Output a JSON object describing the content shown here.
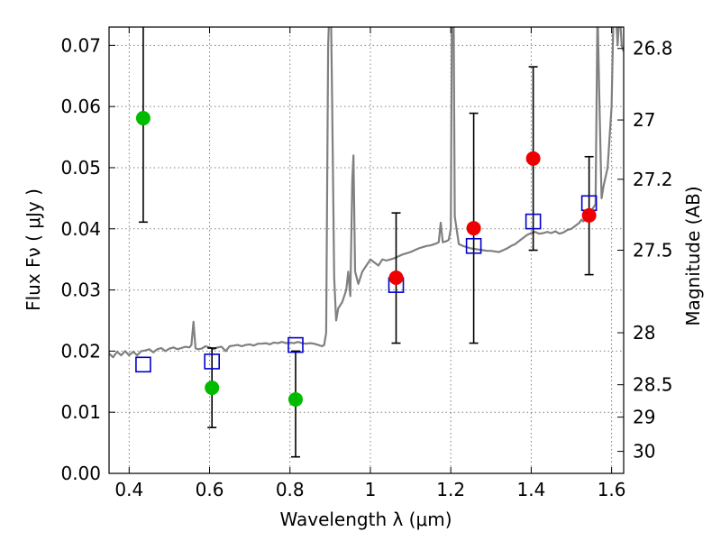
{
  "chart_data": {
    "type": "scatter",
    "title": "",
    "xlabel": "Wavelength  λ (μm)",
    "ylabel": "Flux  Fν  ( μJy )",
    "y2label": "Magnitude (AB)",
    "xlim": [
      0.35,
      1.63
    ],
    "ylim": [
      0.0,
      0.073
    ],
    "grid": true,
    "legend": "none",
    "x_ticks": [
      {
        "value": 0.4,
        "label": "0.4"
      },
      {
        "value": 0.6,
        "label": "0.6"
      },
      {
        "value": 0.8,
        "label": "0.8"
      },
      {
        "value": 1.0,
        "label": "1"
      },
      {
        "value": 1.2,
        "label": "1.2"
      },
      {
        "value": 1.4,
        "label": "1.4"
      },
      {
        "value": 1.6,
        "label": "1.6"
      }
    ],
    "y_ticks": [
      {
        "value": 0.0,
        "label": "0.00"
      },
      {
        "value": 0.01,
        "label": "0.01"
      },
      {
        "value": 0.02,
        "label": "0.02"
      },
      {
        "value": 0.03,
        "label": "0.03"
      },
      {
        "value": 0.04,
        "label": "0.04"
      },
      {
        "value": 0.05,
        "label": "0.05"
      },
      {
        "value": 0.06,
        "label": "0.06"
      },
      {
        "value": 0.07,
        "label": "0.07"
      }
    ],
    "y2_ticks": [
      {
        "label": "26.8",
        "flux": 0.0695
      },
      {
        "label": "27",
        "flux": 0.0578
      },
      {
        "label": "27.2",
        "flux": 0.0481
      },
      {
        "label": "27.5",
        "flux": 0.0365
      },
      {
        "label": "28",
        "flux": 0.023
      },
      {
        "label": "28.5",
        "flux": 0.0145
      },
      {
        "label": "29",
        "flux": 0.0092
      },
      {
        "label": "30",
        "flux": 0.0036
      }
    ],
    "colors": {
      "model": "#808080",
      "synthetic": "#0000cc",
      "upper": "#00bb00",
      "detected": "#ee0000",
      "errorbar": "#000000"
    },
    "model_spectrum": [
      [
        0.35,
        0.0196
      ],
      [
        0.36,
        0.019
      ],
      [
        0.37,
        0.0199
      ],
      [
        0.38,
        0.0193
      ],
      [
        0.39,
        0.02
      ],
      [
        0.4,
        0.0193
      ],
      [
        0.41,
        0.0199
      ],
      [
        0.42,
        0.0193
      ],
      [
        0.43,
        0.02
      ],
      [
        0.44,
        0.0201
      ],
      [
        0.45,
        0.0203
      ],
      [
        0.46,
        0.0198
      ],
      [
        0.47,
        0.0203
      ],
      [
        0.48,
        0.0205
      ],
      [
        0.49,
        0.02
      ],
      [
        0.5,
        0.0204
      ],
      [
        0.51,
        0.0206
      ],
      [
        0.52,
        0.0203
      ],
      [
        0.53,
        0.0205
      ],
      [
        0.54,
        0.0207
      ],
      [
        0.55,
        0.0206
      ],
      [
        0.555,
        0.021
      ],
      [
        0.56,
        0.0248
      ],
      [
        0.565,
        0.0205
      ],
      [
        0.57,
        0.0203
      ],
      [
        0.58,
        0.0204
      ],
      [
        0.59,
        0.0208
      ],
      [
        0.6,
        0.0206
      ],
      [
        0.61,
        0.0203
      ],
      [
        0.62,
        0.0206
      ],
      [
        0.63,
        0.0207
      ],
      [
        0.64,
        0.02
      ],
      [
        0.65,
        0.0208
      ],
      [
        0.66,
        0.0209
      ],
      [
        0.67,
        0.021
      ],
      [
        0.68,
        0.0208
      ],
      [
        0.69,
        0.021
      ],
      [
        0.7,
        0.0211
      ],
      [
        0.71,
        0.0209
      ],
      [
        0.72,
        0.0212
      ],
      [
        0.73,
        0.0212
      ],
      [
        0.74,
        0.0213
      ],
      [
        0.75,
        0.0211
      ],
      [
        0.76,
        0.0214
      ],
      [
        0.77,
        0.0213
      ],
      [
        0.78,
        0.0215
      ],
      [
        0.79,
        0.0213
      ],
      [
        0.8,
        0.0214
      ],
      [
        0.81,
        0.0213
      ],
      [
        0.82,
        0.0215
      ],
      [
        0.83,
        0.0213
      ],
      [
        0.84,
        0.0212
      ],
      [
        0.85,
        0.0213
      ],
      [
        0.86,
        0.0212
      ],
      [
        0.87,
        0.021
      ],
      [
        0.88,
        0.0208
      ],
      [
        0.885,
        0.021
      ],
      [
        0.89,
        0.023
      ],
      [
        0.895,
        0.07
      ],
      [
        0.898,
        0.076
      ],
      [
        0.902,
        0.076
      ],
      [
        0.905,
        0.06
      ],
      [
        0.91,
        0.032
      ],
      [
        0.915,
        0.025
      ],
      [
        0.92,
        0.027
      ],
      [
        0.93,
        0.028
      ],
      [
        0.94,
        0.03
      ],
      [
        0.945,
        0.033
      ],
      [
        0.95,
        0.029
      ],
      [
        0.955,
        0.048
      ],
      [
        0.958,
        0.052
      ],
      [
        0.962,
        0.033
      ],
      [
        0.97,
        0.031
      ],
      [
        0.98,
        0.033
      ],
      [
        0.99,
        0.034
      ],
      [
        1.0,
        0.035
      ],
      [
        1.01,
        0.0345
      ],
      [
        1.02,
        0.034
      ],
      [
        1.03,
        0.035
      ],
      [
        1.04,
        0.0348
      ],
      [
        1.05,
        0.035
      ],
      [
        1.06,
        0.0352
      ],
      [
        1.07,
        0.0355
      ],
      [
        1.08,
        0.0358
      ],
      [
        1.09,
        0.036
      ],
      [
        1.1,
        0.0362
      ],
      [
        1.11,
        0.0365
      ],
      [
        1.12,
        0.0368
      ],
      [
        1.13,
        0.037
      ],
      [
        1.14,
        0.0372
      ],
      [
        1.15,
        0.0373
      ],
      [
        1.16,
        0.0375
      ],
      [
        1.17,
        0.0378
      ],
      [
        1.175,
        0.041
      ],
      [
        1.18,
        0.0378
      ],
      [
        1.19,
        0.038
      ],
      [
        1.195,
        0.0382
      ],
      [
        1.2,
        0.04
      ],
      [
        1.203,
        0.076
      ],
      [
        1.207,
        0.076
      ],
      [
        1.21,
        0.042
      ],
      [
        1.22,
        0.0375
      ],
      [
        1.23,
        0.0372
      ],
      [
        1.24,
        0.037
      ],
      [
        1.25,
        0.0368
      ],
      [
        1.26,
        0.0367
      ],
      [
        1.27,
        0.0366
      ],
      [
        1.28,
        0.0365
      ],
      [
        1.29,
        0.0364
      ],
      [
        1.3,
        0.0364
      ],
      [
        1.31,
        0.0363
      ],
      [
        1.32,
        0.0362
      ],
      [
        1.33,
        0.0365
      ],
      [
        1.34,
        0.0368
      ],
      [
        1.35,
        0.0372
      ],
      [
        1.36,
        0.0375
      ],
      [
        1.37,
        0.038
      ],
      [
        1.38,
        0.0385
      ],
      [
        1.39,
        0.039
      ],
      [
        1.4,
        0.0393
      ],
      [
        1.41,
        0.0395
      ],
      [
        1.42,
        0.0392
      ],
      [
        1.43,
        0.0393
      ],
      [
        1.44,
        0.0395
      ],
      [
        1.45,
        0.0393
      ],
      [
        1.46,
        0.0396
      ],
      [
        1.47,
        0.0392
      ],
      [
        1.48,
        0.0394
      ],
      [
        1.49,
        0.0398
      ],
      [
        1.5,
        0.04
      ],
      [
        1.51,
        0.0405
      ],
      [
        1.52,
        0.041
      ],
      [
        1.525,
        0.0415
      ],
      [
        1.53,
        0.0412
      ],
      [
        1.54,
        0.042
      ],
      [
        1.55,
        0.043
      ],
      [
        1.56,
        0.044
      ],
      [
        1.565,
        0.076
      ],
      [
        1.57,
        0.06
      ],
      [
        1.575,
        0.045
      ],
      [
        1.58,
        0.047
      ],
      [
        1.59,
        0.05
      ],
      [
        1.6,
        0.06
      ],
      [
        1.605,
        0.076
      ],
      [
        1.61,
        0.076
      ],
      [
        1.615,
        0.07
      ],
      [
        1.62,
        0.076
      ],
      [
        1.625,
        0.07
      ],
      [
        1.63,
        0.069
      ]
    ],
    "synthetic_photometry": [
      {
        "x": 0.435,
        "y": 0.0178
      },
      {
        "x": 0.606,
        "y": 0.0183
      },
      {
        "x": 0.814,
        "y": 0.021
      },
      {
        "x": 1.064,
        "y": 0.0308
      },
      {
        "x": 1.257,
        "y": 0.0372
      },
      {
        "x": 1.405,
        "y": 0.0412
      },
      {
        "x": 1.544,
        "y": 0.0442
      }
    ],
    "upper_limit_points": [
      {
        "x": 0.435,
        "y": 0.0581,
        "ylow": 0.0411,
        "yhigh": 0.076
      },
      {
        "x": 0.606,
        "y": 0.014,
        "ylow": 0.0075,
        "yhigh": 0.0205
      },
      {
        "x": 0.814,
        "y": 0.0121,
        "ylow": 0.0027,
        "yhigh": 0.02
      }
    ],
    "detected_points": [
      {
        "x": 1.064,
        "y": 0.032,
        "ylow": 0.0213,
        "yhigh": 0.0426
      },
      {
        "x": 1.257,
        "y": 0.0401,
        "ylow": 0.0213,
        "yhigh": 0.0589
      },
      {
        "x": 1.405,
        "y": 0.0515,
        "ylow": 0.0365,
        "yhigh": 0.0665
      },
      {
        "x": 1.544,
        "y": 0.0422,
        "ylow": 0.0325,
        "yhigh": 0.0518
      }
    ]
  }
}
